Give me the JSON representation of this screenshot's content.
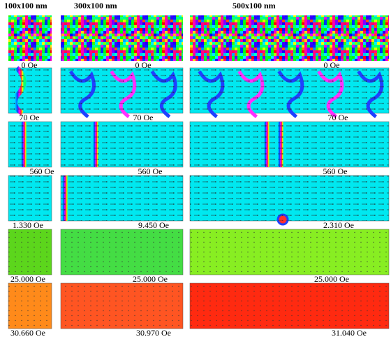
{
  "headers": [
    "100x100 nm",
    "300x100 nm",
    "500x100 nm"
  ],
  "rows": [
    {
      "labels": [
        "0 Oe",
        "0 Oe",
        "0 Oe"
      ]
    },
    {
      "labels": [
        "70 Oe",
        "70 Oe",
        "70 Oe"
      ]
    },
    {
      "labels": [
        "560 Oe",
        "560 Oe",
        "560 Oe"
      ]
    },
    {
      "labels": [
        "1.330 Oe",
        "9.450 Oe",
        "2.310 Oe"
      ]
    },
    {
      "labels": [
        "25.000 Oe",
        "25.000 Oe",
        "25.000 Oe"
      ]
    },
    {
      "labels": [
        "30.660 Oe",
        "30.970 Oe",
        "31.040 Oe"
      ]
    }
  ]
}
